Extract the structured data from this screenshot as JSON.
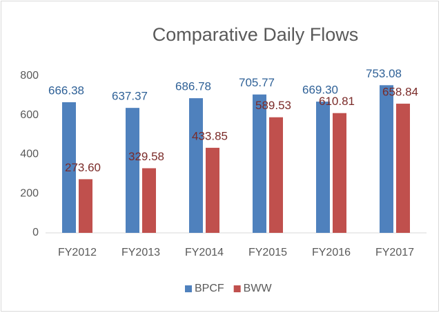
{
  "chart_data": {
    "type": "bar",
    "title": "Comparative Daily Flows",
    "categories": [
      "FY2012",
      "FY2013",
      "FY2014",
      "FY2015",
      "FY2016",
      "FY2017"
    ],
    "series": [
      {
        "name": "BPCF",
        "color": "#4f81bd",
        "label_color": "#2f6197",
        "values": [
          666.38,
          637.37,
          686.78,
          705.77,
          669.3,
          753.08
        ],
        "value_labels": [
          "666.38",
          "637.37",
          "686.78",
          "705.77",
          "669.30",
          "753.08"
        ]
      },
      {
        "name": "BWW",
        "color": "#c0504d",
        "label_color": "#7a2a28",
        "values": [
          273.6,
          329.58,
          433.85,
          589.53,
          610.81,
          658.84
        ],
        "value_labels": [
          "273.60",
          "329.58",
          "433.85",
          "589.53",
          "610.81",
          "658.84"
        ]
      }
    ],
    "ylim": [
      0,
      800
    ],
    "yticks": [
      0,
      200,
      400,
      600,
      800
    ],
    "grid": false,
    "legend": "bottom"
  }
}
